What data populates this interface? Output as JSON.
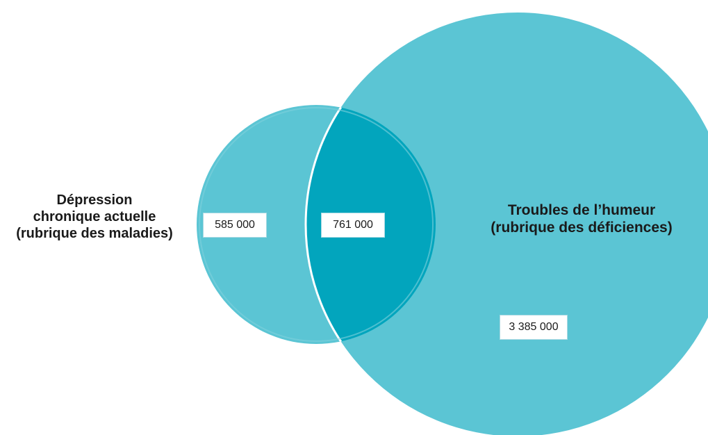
{
  "diagram": {
    "type": "venn",
    "colors": {
      "set_fill": "#5bc5d4",
      "overlap_fill": "#02a5bd",
      "outline": "#ffffff",
      "label_text": "#1a1a1a",
      "box_border": "#a9d9e2"
    },
    "sets": [
      {
        "id": "maladies",
        "label_lines": [
          "Dépression",
          "chronique actuelle",
          "(rubrique des maladies)"
        ],
        "only_count": "585 000"
      },
      {
        "id": "deficiences",
        "label_lines": [
          "Troubles de l’humeur",
          "(rubrique des déficiences)"
        ],
        "only_count": "3 385 000"
      }
    ],
    "intersection_count": "761 000"
  }
}
